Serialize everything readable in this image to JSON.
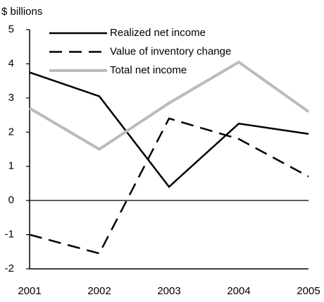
{
  "chart_data": {
    "type": "line",
    "y_axis_label": "$ billions",
    "categories": [
      "2001",
      "2002",
      "2003",
      "2004",
      "2005"
    ],
    "series": [
      {
        "name": "Realized net income",
        "color": "#000000",
        "dash": false,
        "values": [
          3.75,
          3.05,
          0.4,
          2.25,
          1.95
        ]
      },
      {
        "name": "Value of inventory change",
        "color": "#000000",
        "dash": true,
        "values": [
          -1.0,
          -1.55,
          2.4,
          1.8,
          0.7
        ]
      },
      {
        "name": "Total net income",
        "color": "#bbbbbb",
        "dash": false,
        "values": [
          2.7,
          1.5,
          2.85,
          4.05,
          2.6
        ]
      }
    ],
    "ylim": [
      -2,
      5
    ],
    "yticks": [
      -2,
      -1,
      0,
      1,
      2,
      3,
      4,
      5
    ],
    "legend": "upper left"
  }
}
